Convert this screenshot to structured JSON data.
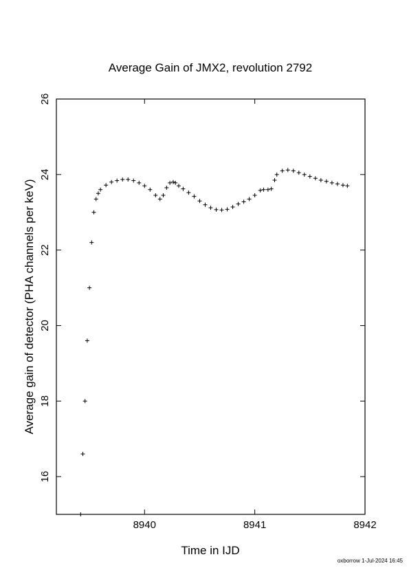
{
  "chart_data": {
    "type": "scatter",
    "marker": "plus",
    "title": "Average Gain of JMX2, revolution 2792",
    "xlabel": "Time in IJD",
    "ylabel": "Average gain of detector (PHA channels per keV)",
    "xlim": [
      8939.2,
      8942
    ],
    "ylim": [
      15,
      26
    ],
    "xticks": [
      8940,
      8941,
      8942
    ],
    "yticks": [
      16,
      18,
      20,
      22,
      24,
      26
    ],
    "grid": false,
    "legend": "none",
    "series": [
      {
        "color": "#000000",
        "x": [
          8939.42,
          8939.44,
          8939.46,
          8939.48,
          8939.5,
          8939.52,
          8939.54,
          8939.56,
          8939.58,
          8939.6,
          8939.65,
          8939.7,
          8939.75,
          8939.8,
          8939.85,
          8939.9,
          8939.95,
          8940.0,
          8940.05,
          8940.1,
          8940.14,
          8940.17,
          8940.2,
          8940.23,
          8940.26,
          8940.28,
          8940.31,
          8940.35,
          8940.4,
          8940.45,
          8940.5,
          8940.55,
          8940.6,
          8940.65,
          8940.7,
          8940.75,
          8940.8,
          8940.85,
          8940.9,
          8940.95,
          8941.0,
          8941.05,
          8941.08,
          8941.12,
          8941.15,
          8941.18,
          8941.2,
          8941.25,
          8941.3,
          8941.35,
          8941.4,
          8941.45,
          8941.5,
          8941.55,
          8941.6,
          8941.65,
          8941.7,
          8941.75,
          8941.8,
          8941.84
        ],
        "y": [
          15.0,
          16.6,
          18.0,
          19.6,
          21.0,
          22.2,
          23.0,
          23.35,
          23.5,
          23.6,
          23.72,
          23.8,
          23.84,
          23.87,
          23.87,
          23.84,
          23.78,
          23.7,
          23.6,
          23.45,
          23.35,
          23.45,
          23.65,
          23.78,
          23.8,
          23.78,
          23.7,
          23.62,
          23.52,
          23.42,
          23.3,
          23.2,
          23.12,
          23.07,
          23.06,
          23.08,
          23.14,
          23.22,
          23.28,
          23.35,
          23.45,
          23.58,
          23.6,
          23.6,
          23.62,
          23.85,
          24.0,
          24.1,
          24.12,
          24.1,
          24.05,
          24.0,
          23.95,
          23.9,
          23.85,
          23.82,
          23.78,
          23.75,
          23.72,
          23.7
        ]
      }
    ]
  },
  "footer": "oxborrow  1-Jul-2024 16:45"
}
